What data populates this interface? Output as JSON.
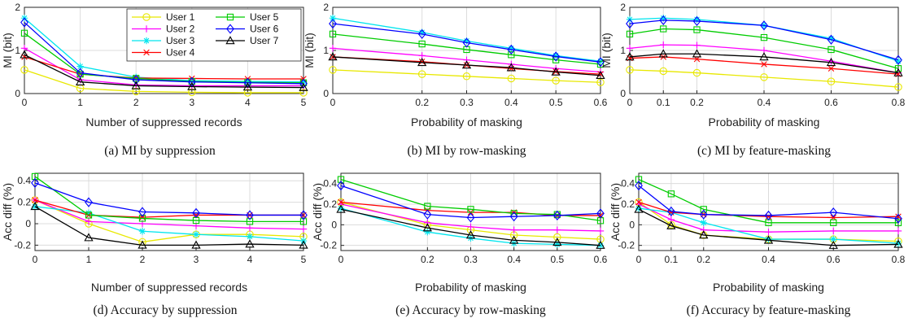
{
  "legend": [
    {
      "name": "User 1",
      "color": "#e8e800",
      "marker": "circle"
    },
    {
      "name": "User 2",
      "color": "#ff00ff",
      "marker": "plus"
    },
    {
      "name": "User 3",
      "color": "#00e5ee",
      "marker": "star"
    },
    {
      "name": "User 4",
      "color": "#ff0000",
      "marker": "x"
    },
    {
      "name": "User 5",
      "color": "#00cc00",
      "marker": "square"
    },
    {
      "name": "User 6",
      "color": "#0000ff",
      "marker": "diamond"
    },
    {
      "name": "User 7",
      "color": "#000000",
      "marker": "triangle"
    }
  ],
  "chart_data": [
    {
      "type": "line",
      "caption": "(a) MI by suppression",
      "xlabel": "Number of suppressed records",
      "ylabel": "MI (bit)",
      "xlim": [
        0,
        5
      ],
      "ylim": [
        0,
        2
      ],
      "xticks": [
        0,
        1,
        2,
        3,
        4,
        5
      ],
      "xtick_labels": [
        "0",
        "1",
        "2",
        "3",
        "4",
        "5"
      ],
      "yticks": [
        0,
        1,
        2
      ],
      "ytick_labels": [
        "0",
        "1",
        "2"
      ],
      "legend": "top-right",
      "series": [
        {
          "name": "User 1",
          "values": [
            0.55,
            0.12,
            0.05,
            0.03,
            0.02,
            0.02
          ]
        },
        {
          "name": "User 2",
          "values": [
            1.05,
            0.32,
            0.2,
            0.18,
            0.18,
            0.18
          ]
        },
        {
          "name": "User 3",
          "values": [
            1.75,
            0.63,
            0.38,
            0.3,
            0.28,
            0.27
          ]
        },
        {
          "name": "User 4",
          "values": [
            0.85,
            0.45,
            0.36,
            0.35,
            0.34,
            0.34
          ]
        },
        {
          "name": "User 5",
          "values": [
            1.4,
            0.45,
            0.35,
            0.28,
            0.26,
            0.25
          ]
        },
        {
          "name": "User 6",
          "values": [
            1.65,
            0.48,
            0.32,
            0.27,
            0.25,
            0.23
          ]
        },
        {
          "name": "User 7",
          "values": [
            0.9,
            0.27,
            0.18,
            0.16,
            0.15,
            0.14
          ]
        }
      ]
    },
    {
      "type": "line",
      "caption": "(b) MI by row-masking",
      "xlabel": "Probability of masking",
      "ylabel": "MI (bit)",
      "x": [
        0,
        0.2,
        0.3,
        0.4,
        0.5,
        0.6
      ],
      "xlim": [
        0,
        0.6
      ],
      "ylim": [
        0,
        2
      ],
      "xticks": [
        0,
        0.2,
        0.3,
        0.4,
        0.5,
        0.6
      ],
      "xtick_labels": [
        "0",
        "0.2",
        "0.3",
        "0.4",
        "0.5",
        "0.6"
      ],
      "yticks": [
        0,
        1,
        2
      ],
      "ytick_labels": [
        "0",
        "1",
        "2"
      ],
      "series": [
        {
          "name": "User 1",
          "values": [
            0.55,
            0.45,
            0.4,
            0.35,
            0.3,
            0.26
          ]
        },
        {
          "name": "User 2",
          "values": [
            1.05,
            0.88,
            0.78,
            0.68,
            0.58,
            0.5
          ]
        },
        {
          "name": "User 3",
          "values": [
            1.75,
            1.42,
            1.22,
            1.05,
            0.88,
            0.75
          ]
        },
        {
          "name": "User 4",
          "values": [
            0.85,
            0.74,
            0.66,
            0.58,
            0.51,
            0.45
          ]
        },
        {
          "name": "User 5",
          "values": [
            1.38,
            1.15,
            1.02,
            0.9,
            0.78,
            0.68
          ]
        },
        {
          "name": "User 6",
          "values": [
            1.62,
            1.38,
            1.18,
            1.02,
            0.86,
            0.73
          ]
        },
        {
          "name": "User 7",
          "values": [
            0.85,
            0.72,
            0.66,
            0.6,
            0.5,
            0.42
          ]
        }
      ]
    },
    {
      "type": "line",
      "caption": "(c) MI by feature-masking",
      "xlabel": "Probability of masking",
      "ylabel": "MI (bit)",
      "x": [
        0,
        0.1,
        0.2,
        0.4,
        0.6,
        0.8
      ],
      "xlim": [
        0,
        0.8
      ],
      "ylim": [
        0,
        2
      ],
      "xticks": [
        0,
        0.1,
        0.2,
        0.4,
        0.6,
        0.8
      ],
      "xtick_labels": [
        "0",
        "0.1",
        "0.2",
        "0.4",
        "0.6",
        "0.8"
      ],
      "yticks": [
        0,
        1,
        2
      ],
      "ytick_labels": [
        "0",
        "1",
        "2"
      ],
      "series": [
        {
          "name": "User 1",
          "values": [
            0.55,
            0.52,
            0.48,
            0.38,
            0.28,
            0.15
          ]
        },
        {
          "name": "User 2",
          "values": [
            1.05,
            1.13,
            1.12,
            1.0,
            0.75,
            0.48
          ]
        },
        {
          "name": "User 3",
          "values": [
            1.72,
            1.75,
            1.72,
            1.58,
            1.28,
            0.75
          ]
        },
        {
          "name": "User 4",
          "values": [
            0.82,
            0.85,
            0.8,
            0.68,
            0.58,
            0.45
          ]
        },
        {
          "name": "User 5",
          "values": [
            1.38,
            1.5,
            1.48,
            1.3,
            1.02,
            0.58
          ]
        },
        {
          "name": "User 6",
          "values": [
            1.62,
            1.7,
            1.68,
            1.58,
            1.25,
            0.78
          ]
        },
        {
          "name": "User 7",
          "values": [
            0.85,
            0.92,
            0.92,
            0.85,
            0.72,
            0.48
          ]
        }
      ]
    },
    {
      "type": "line",
      "caption": "(d) Accuracy by suppression",
      "xlabel": "Number of suppressed records",
      "ylabel": "Acc diff (%)",
      "xlim": [
        0,
        5
      ],
      "ylim": [
        -0.25,
        0.47
      ],
      "xticks": [
        0,
        1,
        2,
        3,
        4,
        5
      ],
      "xtick_labels": [
        "0",
        "1",
        "2",
        "3",
        "4",
        "5"
      ],
      "yticks": [
        -0.2,
        0,
        0.2,
        0.4
      ],
      "ytick_labels": [
        "-0.2",
        "0",
        "0.2",
        "0.4"
      ],
      "series": [
        {
          "name": "User 1",
          "values": [
            0.22,
            0.0,
            -0.17,
            -0.1,
            -0.1,
            -0.12
          ]
        },
        {
          "name": "User 2",
          "values": [
            0.22,
            0.02,
            0.0,
            -0.02,
            -0.04,
            -0.05
          ]
        },
        {
          "name": "User 3",
          "values": [
            0.16,
            0.1,
            -0.07,
            -0.1,
            -0.12,
            -0.16
          ]
        },
        {
          "name": "User 4",
          "values": [
            0.22,
            0.08,
            0.06,
            0.08,
            0.08,
            0.08
          ]
        },
        {
          "name": "User 5",
          "values": [
            0.44,
            0.08,
            0.05,
            0.03,
            0.02,
            0.02
          ]
        },
        {
          "name": "User 6",
          "values": [
            0.38,
            0.2,
            0.11,
            0.1,
            0.08,
            0.08
          ]
        },
        {
          "name": "User 7",
          "values": [
            0.16,
            -0.13,
            -0.2,
            -0.2,
            -0.19,
            -0.2
          ]
        }
      ]
    },
    {
      "type": "line",
      "caption": "(e) Accuracy by row-masking",
      "xlabel": "Probability of masking",
      "ylabel": "Acc diff (%)",
      "x": [
        0,
        0.2,
        0.3,
        0.4,
        0.5,
        0.6
      ],
      "xlim": [
        0,
        0.6
      ],
      "ylim": [
        -0.25,
        0.5
      ],
      "xticks": [
        0,
        0.2,
        0.3,
        0.4,
        0.5,
        0.6
      ],
      "xtick_labels": [
        "0",
        "0.2",
        "0.3",
        "0.4",
        "0.5",
        "0.6"
      ],
      "yticks": [
        -0.2,
        0,
        0.2,
        0.4
      ],
      "ytick_labels": [
        "-0.2",
        "0",
        "0.2",
        "0.4"
      ],
      "series": [
        {
          "name": "User 1",
          "values": [
            0.22,
            0.0,
            -0.05,
            -0.1,
            -0.12,
            -0.14
          ]
        },
        {
          "name": "User 2",
          "values": [
            0.2,
            0.02,
            -0.02,
            -0.05,
            -0.05,
            -0.06
          ]
        },
        {
          "name": "User 3",
          "values": [
            0.16,
            -0.07,
            -0.13,
            -0.18,
            -0.19,
            -0.2
          ]
        },
        {
          "name": "User 4",
          "values": [
            0.22,
            0.14,
            0.12,
            0.12,
            0.09,
            0.09
          ]
        },
        {
          "name": "User 5",
          "values": [
            0.44,
            0.18,
            0.15,
            0.11,
            0.1,
            0.04
          ]
        },
        {
          "name": "User 6",
          "values": [
            0.38,
            0.1,
            0.07,
            0.08,
            0.09,
            0.11
          ]
        },
        {
          "name": "User 7",
          "values": [
            0.15,
            -0.03,
            -0.1,
            -0.15,
            -0.17,
            -0.2
          ]
        }
      ]
    },
    {
      "type": "line",
      "caption": "(f) Accuracy by feature-masking",
      "xlabel": "Probability of masking",
      "ylabel": "Acc diff (%)",
      "x": [
        0,
        0.1,
        0.2,
        0.4,
        0.6,
        0.8
      ],
      "xlim": [
        0,
        0.8
      ],
      "ylim": [
        -0.25,
        0.5
      ],
      "xticks": [
        0,
        0.1,
        0.2,
        0.4,
        0.6,
        0.8
      ],
      "xtick_labels": [
        "0",
        "0.1",
        "0.2",
        "0.4",
        "0.6",
        "0.8"
      ],
      "yticks": [
        -0.2,
        0,
        0.2,
        0.4
      ],
      "ytick_labels": [
        "-0.2",
        "0",
        "0.2",
        "0.4"
      ],
      "series": [
        {
          "name": "User 1",
          "values": [
            0.22,
            0.0,
            -0.1,
            -0.14,
            -0.14,
            -0.16
          ]
        },
        {
          "name": "User 2",
          "values": [
            0.2,
            0.05,
            -0.05,
            -0.07,
            -0.06,
            -0.06
          ]
        },
        {
          "name": "User 3",
          "values": [
            0.16,
            0.12,
            0.02,
            -0.14,
            -0.14,
            -0.18
          ]
        },
        {
          "name": "User 4",
          "values": [
            0.22,
            0.12,
            0.1,
            0.08,
            0.07,
            0.08
          ]
        },
        {
          "name": "User 5",
          "values": [
            0.44,
            0.3,
            0.15,
            0.02,
            0.02,
            0.02
          ]
        },
        {
          "name": "User 6",
          "values": [
            0.38,
            0.13,
            0.1,
            0.09,
            0.12,
            0.06
          ]
        },
        {
          "name": "User 7",
          "values": [
            0.15,
            -0.01,
            -0.1,
            -0.15,
            -0.2,
            -0.19
          ]
        }
      ]
    }
  ]
}
